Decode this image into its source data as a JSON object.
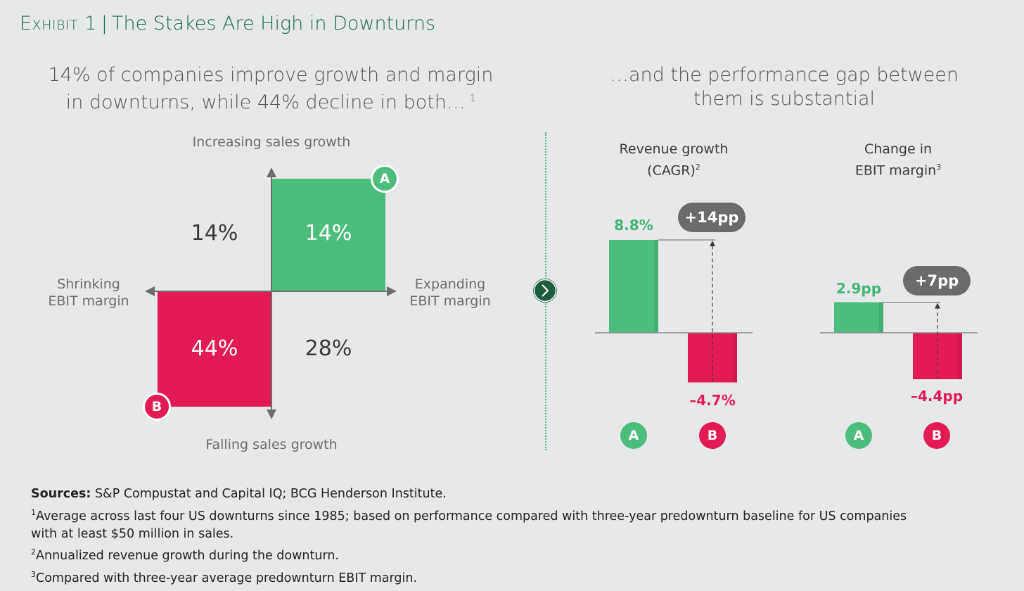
{
  "header": {
    "exhibit": "Exhibit 1",
    "separator": "|",
    "title": "The Stakes Are High in Downturns"
  },
  "left_panel": {
    "subtitle_line1": "14% of companies improve growth and margin",
    "subtitle_line2": "in downturns, while 44% decline in both…",
    "subtitle_note": "1",
    "axis_top": "Increasing sales growth",
    "axis_bottom": "Falling sales growth",
    "axis_left_line1": "Shrinking",
    "axis_left_line2": "EBIT margin",
    "axis_right_line1": "Expanding",
    "axis_right_line2": "EBIT margin",
    "badge_a": "A",
    "badge_b": "B"
  },
  "right_panel": {
    "subtitle_line1": "…and the performance gap between",
    "subtitle_line2": "them is substantial"
  },
  "colors": {
    "green": "#4dbd7e",
    "red": "#e31b55",
    "title_green": "#1b6b4c",
    "pill_gray": "#6b6b6b",
    "background": "#e7e8e9"
  },
  "chart_data": [
    {
      "type": "quadrant",
      "x_axis": "EBIT margin (shrinking ← → expanding)",
      "y_axis": "Sales growth (falling ↓ ↑ increasing)",
      "quadrants": [
        {
          "position": "top-left",
          "label": "14%",
          "value": 14,
          "highlight": false
        },
        {
          "position": "top-right",
          "label": "14%",
          "value": 14,
          "highlight": true,
          "color": "#4dbd7e",
          "badge": "A"
        },
        {
          "position": "bottom-left",
          "label": "44%",
          "value": 44,
          "highlight": true,
          "color": "#e31b55",
          "badge": "B"
        },
        {
          "position": "bottom-right",
          "label": "28%",
          "value": 28,
          "highlight": false
        }
      ]
    },
    {
      "type": "bar",
      "title_line1": "Revenue growth",
      "title_line2": "(CAGR)",
      "title_note": "2",
      "categories": [
        "A",
        "B"
      ],
      "values": [
        8.8,
        -4.7
      ],
      "labels": [
        "8.8%",
        "–4.7%"
      ],
      "colors": [
        "#4dbd7e",
        "#e31b55"
      ],
      "gap_label": "+14pp"
    },
    {
      "type": "bar",
      "title_line1": "Change in",
      "title_line2": "EBIT margin",
      "title_note": "3",
      "categories": [
        "A",
        "B"
      ],
      "values": [
        2.9,
        -4.4
      ],
      "labels": [
        "2.9pp",
        "–4.4pp"
      ],
      "colors": [
        "#4dbd7e",
        "#e31b55"
      ],
      "gap_label": "+7pp"
    }
  ],
  "footer": {
    "sources_label": "Sources:",
    "sources_text": "S&P Compustat and Capital IQ; BCG Henderson Institute.",
    "note1_mark": "1",
    "note1_line1": "Average across last four US downturns since 1985; based on performance compared with three-year predownturn baseline for US companies",
    "note1_line2": "with at least $50 million in sales.",
    "note2_mark": "2",
    "note2": "Annualized revenue growth during the downturn.",
    "note3_mark": "3",
    "note3": "Compared with three-year average predownturn EBIT margin."
  }
}
